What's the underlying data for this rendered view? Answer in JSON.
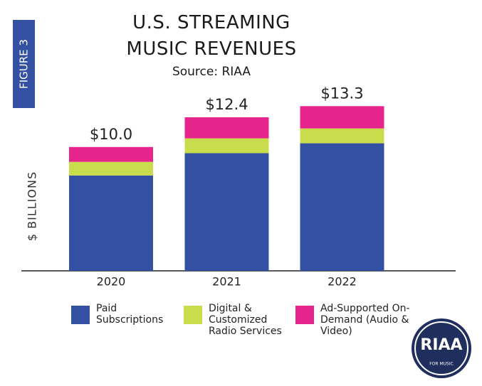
{
  "chart_data": {
    "type": "stacked_bar",
    "figure_label": "FIGURE 3",
    "title": "U.S. STREAMING MUSIC REVENUES",
    "subtitle": "Source: RIAA",
    "y_axis_label": "$ BILLIONS",
    "categories": [
      "2020",
      "2021",
      "2022"
    ],
    "series": [
      {
        "name": "Paid Subscriptions",
        "color": "#3350a3",
        "values": [
          7.7,
          9.5,
          10.3
        ]
      },
      {
        "name": "Digital & Customized Radio Services",
        "color": "#c9dc4b",
        "values": [
          1.1,
          1.2,
          1.2
        ]
      },
      {
        "name": "Ad-Supported On-Demand (Audio & Video)",
        "color": "#e5258b",
        "values": [
          1.2,
          1.7,
          1.8
        ]
      }
    ],
    "totals": [
      10.0,
      12.4,
      13.3
    ],
    "total_labels": [
      "$10.0",
      "$12.4",
      "$13.3"
    ],
    "ylim": [
      0,
      14
    ],
    "logo": {
      "text": "RIAA",
      "subtext": "FOR MUSIC"
    }
  }
}
